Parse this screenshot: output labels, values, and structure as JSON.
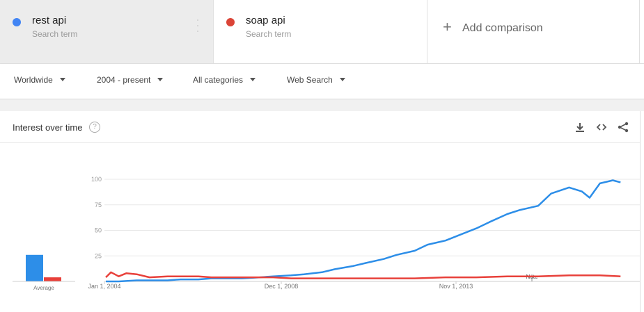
{
  "terms": [
    {
      "name": "rest api",
      "subtitle": "Search term",
      "color": "#4285f4"
    },
    {
      "name": "soap api",
      "subtitle": "Search term",
      "color": "#db4437"
    }
  ],
  "add_comparison": "Add comparison",
  "filters": {
    "region": "Worldwide",
    "time": "2004 - present",
    "category": "All categories",
    "search_type": "Web Search"
  },
  "card": {
    "title": "Interest over time",
    "help_icon": "question-circle-icon",
    "icons": [
      "download-icon",
      "embed-code-icon",
      "share-icon"
    ]
  },
  "chart_data": {
    "type": "line",
    "x_tick_labels": [
      "Jan 1, 2004",
      "Dec 1, 2008",
      "Nov 1, 2013"
    ],
    "y_ticks": [
      25,
      50,
      75,
      100
    ],
    "ylim": [
      0,
      100
    ],
    "note_label": "Note",
    "grid": true,
    "average_label": "Average",
    "averages": [
      {
        "name": "rest api",
        "value": 26
      },
      {
        "name": "soap api",
        "value": 4
      }
    ],
    "series": [
      {
        "name": "rest api",
        "color": "#2d8ee8",
        "points": [
          [
            "2004-01",
            0
          ],
          [
            "2004-06",
            0
          ],
          [
            "2005-01",
            1
          ],
          [
            "2005-06",
            1
          ],
          [
            "2006-01",
            1
          ],
          [
            "2006-06",
            2
          ],
          [
            "2007-01",
            2
          ],
          [
            "2007-06",
            3
          ],
          [
            "2008-01",
            3
          ],
          [
            "2008-06",
            3
          ],
          [
            "2009-01",
            4
          ],
          [
            "2009-06",
            5
          ],
          [
            "2010-01",
            6
          ],
          [
            "2010-06",
            7
          ],
          [
            "2011-01",
            9
          ],
          [
            "2011-06",
            12
          ],
          [
            "2012-01",
            15
          ],
          [
            "2012-06",
            18
          ],
          [
            "2013-01",
            22
          ],
          [
            "2013-06",
            26
          ],
          [
            "2014-01",
            30
          ],
          [
            "2014-06",
            36
          ],
          [
            "2015-01",
            40
          ],
          [
            "2015-06",
            45
          ],
          [
            "2016-01",
            52
          ],
          [
            "2016-06",
            58
          ],
          [
            "2017-01",
            66
          ],
          [
            "2017-06",
            70
          ],
          [
            "2018-01",
            74
          ],
          [
            "2018-06",
            86
          ],
          [
            "2019-01",
            92
          ],
          [
            "2019-06",
            88
          ],
          [
            "2019-09",
            82
          ],
          [
            "2020-01",
            96
          ],
          [
            "2020-06",
            99
          ],
          [
            "2020-09",
            97
          ]
        ]
      },
      {
        "name": "soap api",
        "color": "#e8403a",
        "points": [
          [
            "2004-01",
            4
          ],
          [
            "2004-03",
            9
          ],
          [
            "2004-06",
            5
          ],
          [
            "2004-09",
            8
          ],
          [
            "2005-01",
            7
          ],
          [
            "2005-06",
            4
          ],
          [
            "2006-01",
            5
          ],
          [
            "2006-06",
            5
          ],
          [
            "2007-01",
            5
          ],
          [
            "2007-06",
            4
          ],
          [
            "2008-01",
            4
          ],
          [
            "2008-06",
            4
          ],
          [
            "2009-01",
            4
          ],
          [
            "2009-06",
            4
          ],
          [
            "2010-01",
            3
          ],
          [
            "2011-01",
            3
          ],
          [
            "2012-01",
            3
          ],
          [
            "2013-01",
            3
          ],
          [
            "2014-01",
            3
          ],
          [
            "2015-01",
            4
          ],
          [
            "2016-01",
            4
          ],
          [
            "2017-01",
            5
          ],
          [
            "2018-01",
            5
          ],
          [
            "2019-01",
            6
          ],
          [
            "2020-01",
            6
          ],
          [
            "2020-09",
            5
          ]
        ]
      }
    ]
  }
}
